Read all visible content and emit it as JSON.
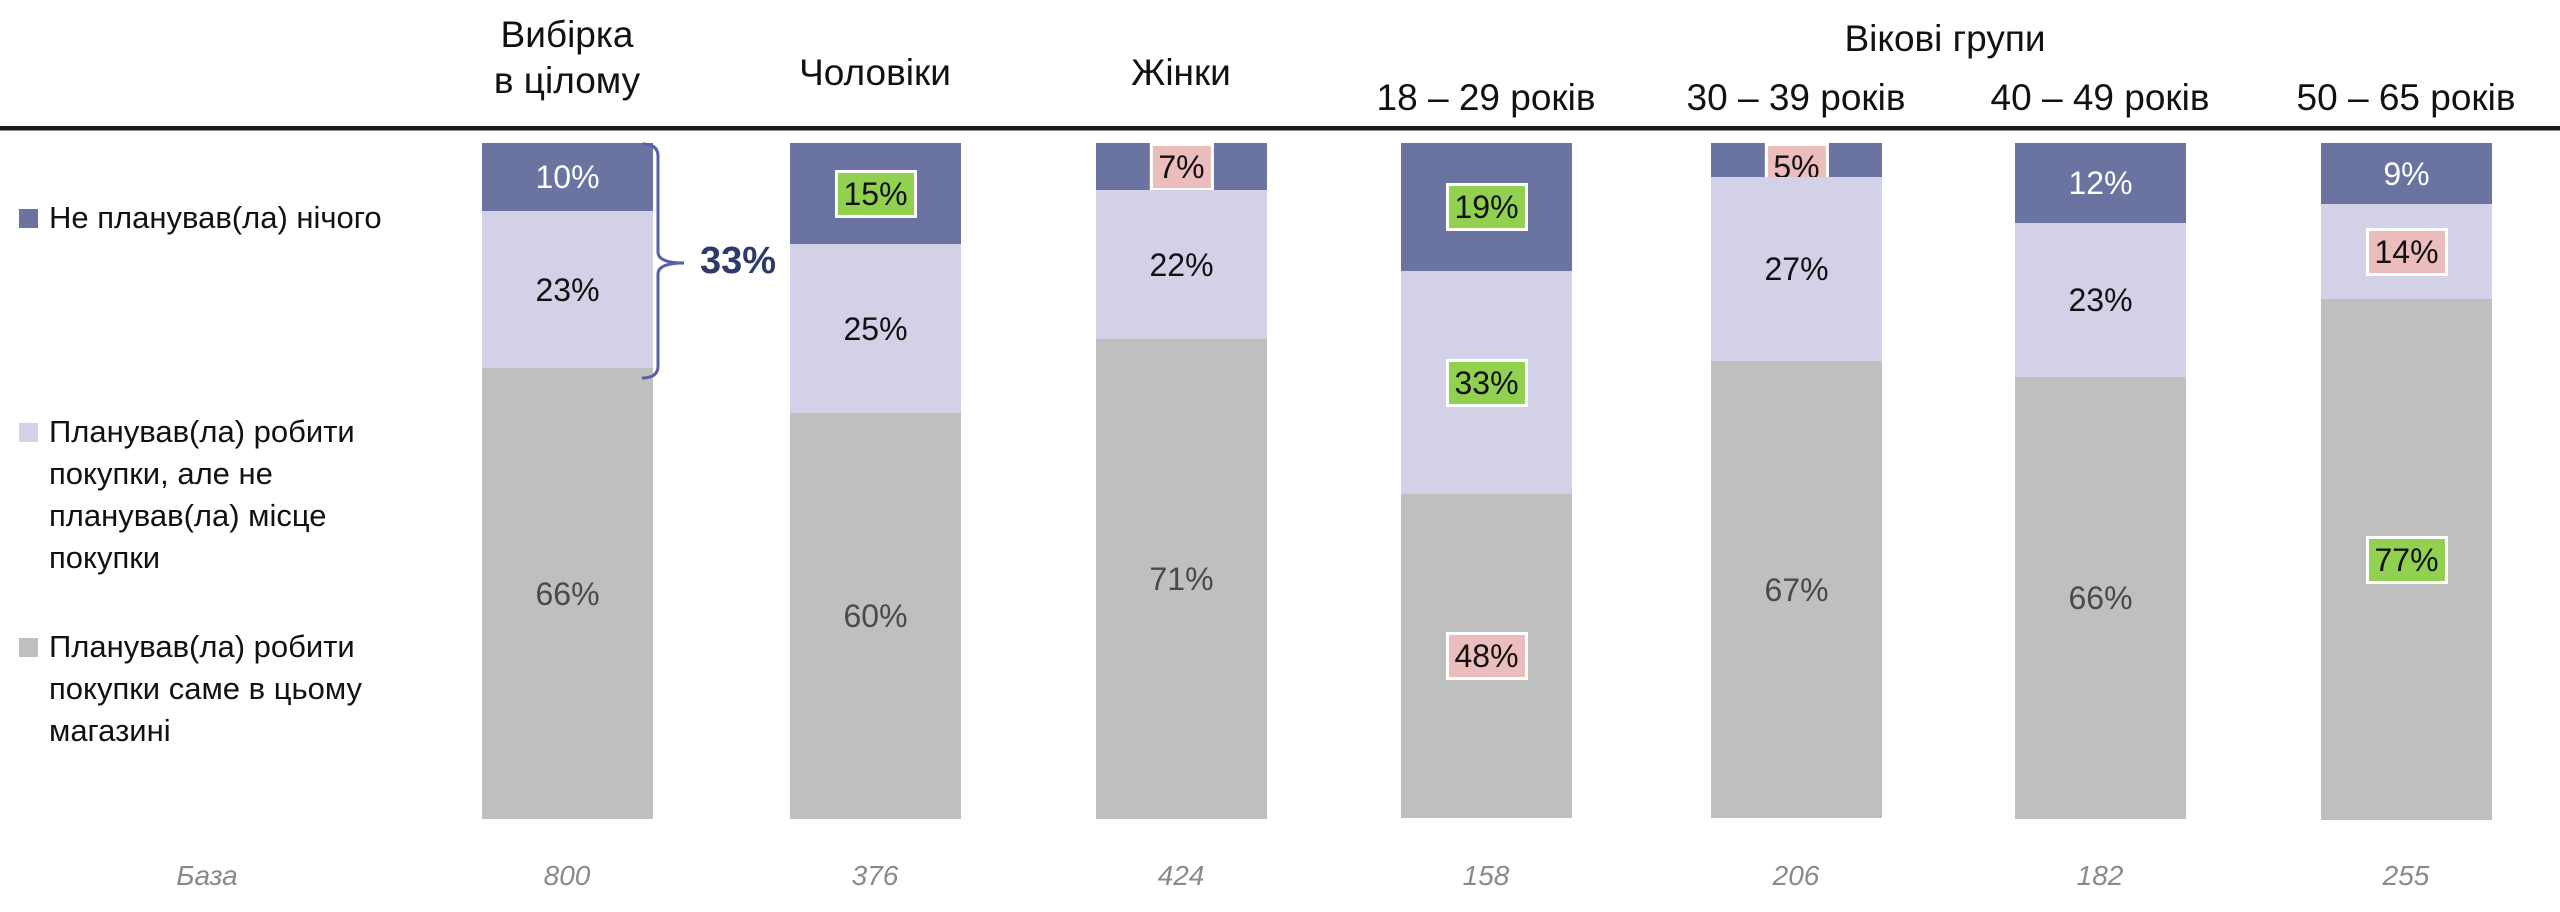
{
  "header": {
    "group_label": "Вікові групи",
    "columns": [
      {
        "label_lines": [
          "Вибірка",
          "в цілому"
        ]
      },
      {
        "label_lines": [
          "Чоловіки"
        ]
      },
      {
        "label_lines": [
          "Жінки"
        ]
      },
      {
        "label_lines": [
          "18 – 29 років"
        ]
      },
      {
        "label_lines": [
          "30 – 39 років"
        ]
      },
      {
        "label_lines": [
          "40 – 49 років"
        ]
      },
      {
        "label_lines": [
          "50 – 65 років"
        ]
      }
    ]
  },
  "legend": {
    "items": [
      {
        "label": "Не планував(ла) нічого",
        "color": "#6b74a1"
      },
      {
        "label": "Планував(ла) робити покупки, але не планував(ла) місце покупки",
        "lines": [
          "Планував(ла) робити",
          "покупки, але не",
          "планував(ла) місце",
          "покупки"
        ],
        "color": "#d3d1e8"
      },
      {
        "label": "Планував(ла) робити покупки саме в цьому магазині",
        "lines": [
          "Планував(ла) робити",
          "покупки саме в цьому",
          "магазині"
        ],
        "color": "#bfbfbf"
      }
    ]
  },
  "annotation": {
    "bracket_total": "33%",
    "bracket_color": "#5a5ea8",
    "text_color": "#2e3a6b",
    "applies_to": "Вибірка в цілому",
    "spans": [
      "Не планував(ла) нічого",
      "Планував(ла) робити покупки, але не планував(ла) місце покупки"
    ]
  },
  "base": {
    "label": "База",
    "values": [
      "800",
      "376",
      "424",
      "158",
      "206",
      "182",
      "255"
    ]
  },
  "colors": {
    "dark": "#6b74a1",
    "light": "#d3d1e8",
    "gray": "#bfbfbf",
    "highlight_green": "#92d050",
    "highlight_pink": "#ebbdbd"
  },
  "chart_data": {
    "type": "bar",
    "stacked": true,
    "orientation": "vertical",
    "percent": true,
    "title": "",
    "xlabel": "",
    "ylabel": "",
    "ylim": [
      0,
      100
    ],
    "grid": false,
    "legend_position": "left",
    "categories": [
      "Вибірка в цілому",
      "Чоловіки",
      "Жінки",
      "18 – 29 років",
      "30 – 39 років",
      "40 – 49 років",
      "50 – 65 років"
    ],
    "category_group": {
      "label": "Вікові групи",
      "members": [
        "18 – 29 років",
        "30 – 39 років",
        "40 – 49 років",
        "50 – 65 років"
      ]
    },
    "series": [
      {
        "name": "Не планував(ла) нічого",
        "key": "dark",
        "color": "#6b74a1",
        "values": [
          10,
          15,
          7,
          19,
          5,
          12,
          9
        ],
        "labels": [
          "10%",
          "15%",
          "7%",
          "19%",
          "5%",
          "12%",
          "9%"
        ],
        "highlight": [
          null,
          "green",
          "pink",
          "green",
          "pink",
          null,
          null
        ]
      },
      {
        "name": "Планував(ла) робити покупки, але не планував(ла) місце покупки",
        "key": "light",
        "color": "#d3d1e8",
        "values": [
          23,
          25,
          22,
          33,
          27,
          23,
          14
        ],
        "labels": [
          "23%",
          "25%",
          "22%",
          "33%",
          "27%",
          "23%",
          "14%"
        ],
        "highlight": [
          null,
          null,
          null,
          "green",
          null,
          null,
          "pink"
        ]
      },
      {
        "name": "Планував(ла) робити покупки саме в цьому магазині",
        "key": "gray",
        "color": "#bfbfbf",
        "values": [
          66,
          60,
          71,
          48,
          67,
          66,
          77
        ],
        "labels": [
          "66%",
          "60%",
          "71%",
          "48%",
          "67%",
          "66%",
          "77%"
        ],
        "highlight": [
          null,
          null,
          null,
          "pink",
          null,
          null,
          "green"
        ]
      }
    ],
    "base_label": "База",
    "base_n": [
      800,
      376,
      424,
      158,
      206,
      182,
      255
    ],
    "annotations": [
      {
        "type": "bracket",
        "category": "Вибірка в цілому",
        "series": [
          "Не планував(ла) нічого",
          "Планував(ла) робити покупки, але не планував(ла) місце покупки"
        ],
        "text": "33%"
      }
    ]
  }
}
